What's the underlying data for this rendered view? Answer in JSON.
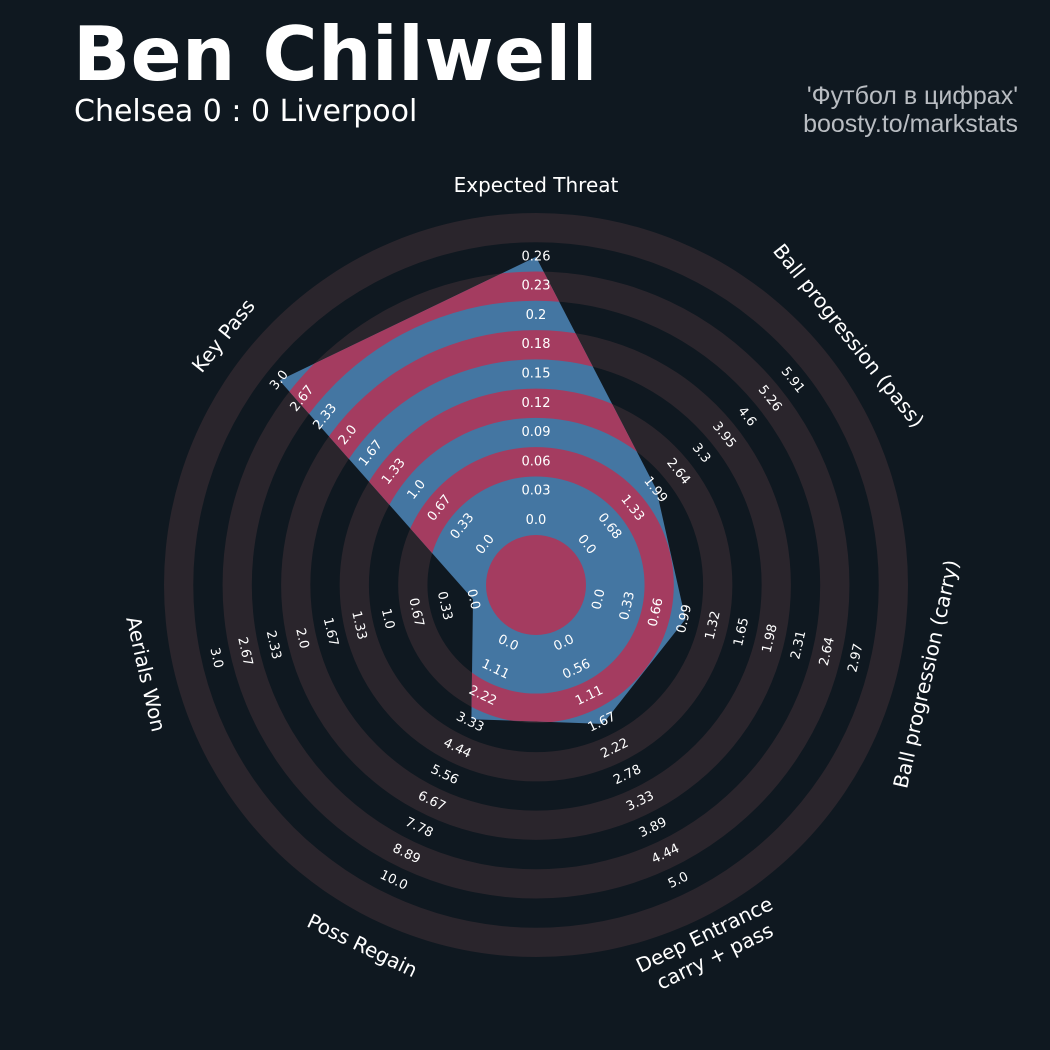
{
  "header": {
    "title": "Ben Chilwell",
    "subtitle": "Chelsea 0 : 0 Liverpool",
    "credit_line1": "'Футбол в цифрах'",
    "credit_line2": "boosty.to/markstats"
  },
  "colors": {
    "background": "#0f1820",
    "ring_band": "#2a252c",
    "player_fill": "#4476a2",
    "highlight_band": "#a43c60",
    "text": "#ffffff",
    "credit_text": "#b9bdc2"
  },
  "chart_data": {
    "type": "radar",
    "rings": 10,
    "series": [
      {
        "values": [
          0.26,
          2.0,
          1.0,
          1.7,
          3.2,
          0.0,
          3.0
        ]
      }
    ],
    "axes": [
      {
        "label": "Expected Threat",
        "min": 0.0,
        "max": 0.26,
        "ticks": [
          "0.0",
          "0.03",
          "0.06",
          "0.09",
          "0.12",
          "0.15",
          "0.18",
          "0.2",
          "0.23",
          "0.26"
        ]
      },
      {
        "label": "Ball progression (pass)",
        "min": 0.0,
        "max": 5.91,
        "ticks": [
          "0.0",
          "0.68",
          "1.33",
          "1.99",
          "2.64",
          "3.3",
          "3.95",
          "4.6",
          "5.26",
          "5.91"
        ]
      },
      {
        "label": "Ball progression (carry)",
        "min": 0.0,
        "max": 2.97,
        "ticks": [
          "0.0",
          "0.33",
          "0.66",
          "0.99",
          "1.32",
          "1.65",
          "1.98",
          "2.31",
          "2.64",
          "2.97"
        ]
      },
      {
        "label": "Deep Entrance\ncarry + pass",
        "min": 0.0,
        "max": 5.0,
        "ticks": [
          "0.0",
          "0.56",
          "1.11",
          "1.67",
          "2.22",
          "2.78",
          "3.33",
          "3.89",
          "4.44",
          "5.0"
        ]
      },
      {
        "label": "Poss Regain",
        "min": 0.0,
        "max": 10.0,
        "ticks": [
          "0.0",
          "1.11",
          "2.22",
          "3.33",
          "4.44",
          "5.56",
          "6.67",
          "7.78",
          "8.89",
          "10.0"
        ]
      },
      {
        "label": "Aerials Won",
        "min": 0.0,
        "max": 3.0,
        "ticks": [
          "0.0",
          "0.33",
          "0.67",
          "1.0",
          "1.33",
          "1.67",
          "2.0",
          "2.33",
          "2.67",
          "3.0"
        ]
      },
      {
        "label": "Key Pass",
        "min": 0.0,
        "max": 3.0,
        "ticks": [
          "0.0",
          "0.33",
          "0.67",
          "1.0",
          "1.33",
          "1.67",
          "2.0",
          "2.33",
          "2.67",
          "3.0"
        ]
      }
    ]
  }
}
